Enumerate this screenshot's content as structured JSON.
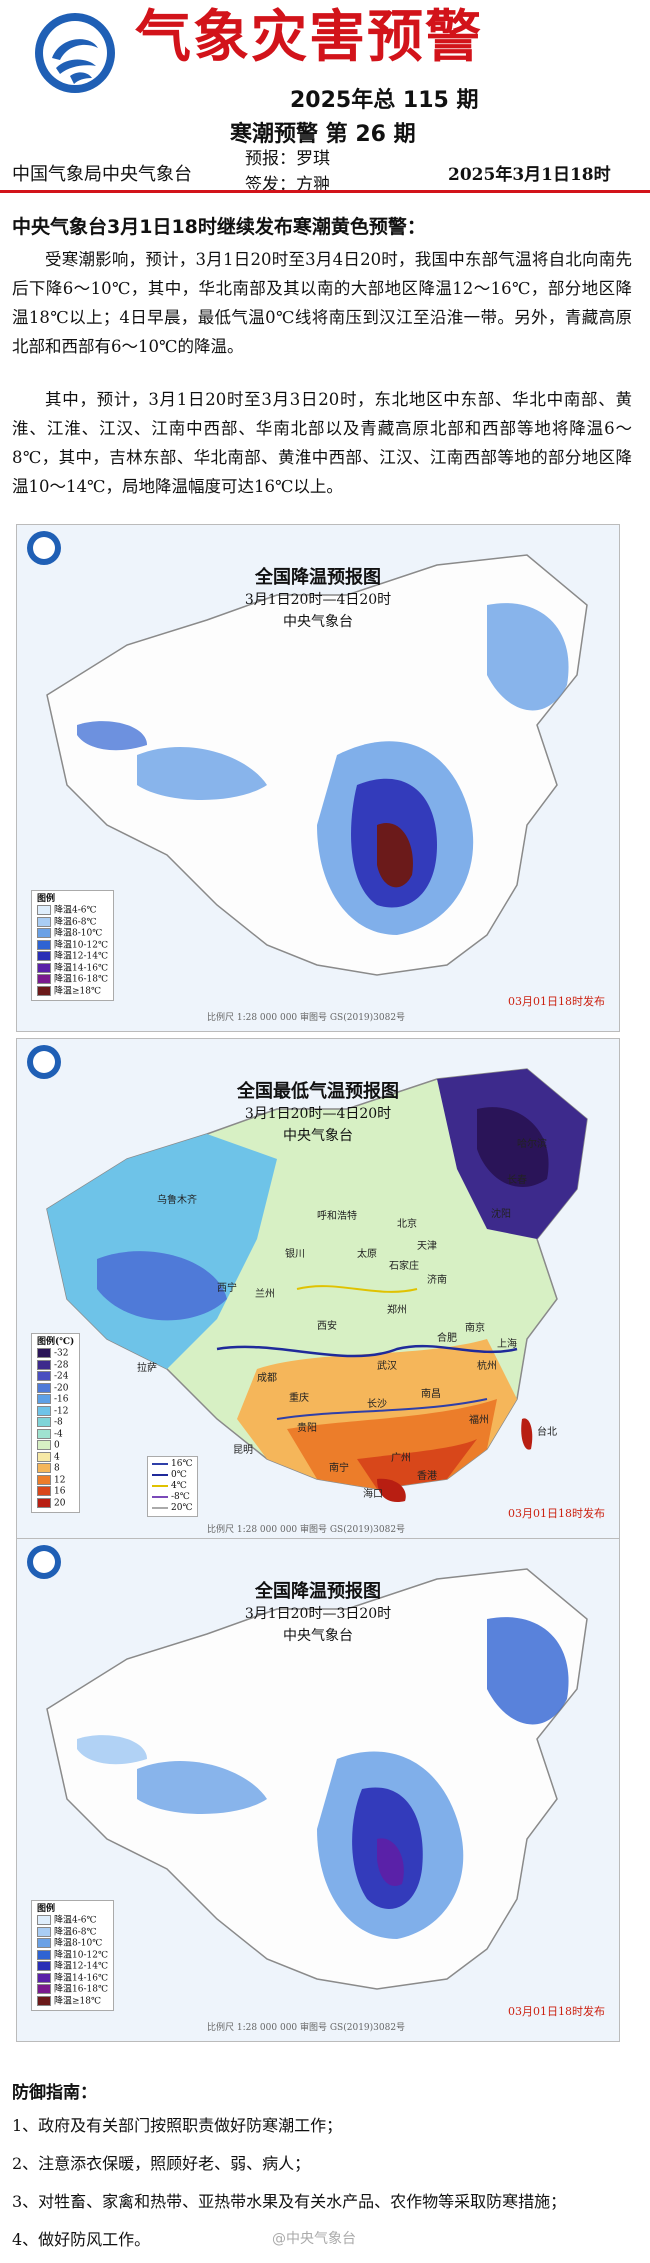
{
  "header": {
    "title": "气象灾害预警",
    "issue": "2025年总 115 期",
    "warning_no": "寒潮预警 第 26 期",
    "issuer": "中国气象局中央气象台",
    "forecaster_label": "预报：",
    "forecaster": "罗琪",
    "signer_label": "签发：",
    "signer": "方翀",
    "issue_time": "2025年3月1日18时"
  },
  "headline": "中央气象台3月1日18时继续发布寒潮黄色预警：",
  "paragraphs": [
    "受寒潮影响，预计，3月1日20时至3月4日20时，我国中东部气温将自北向南先后下降6～10℃，其中，华北南部及其以南的大部地区降温12～16℃，部分地区降温18℃以上；4日早晨，最低气温0℃线将南压到汉江至沿淮一带。另外，青藏高原北部和西部有6～10℃的降温。",
    "其中，预计，3月1日20时至3月3日20时，东北地区中东部、华北中南部、黄淮、江淮、江汉、江南中西部、华南北部以及青藏高原北部和西部等地将降温6～8℃，其中，吉林东部、华北南部、黄淮中西部、江汉、江南西部等地的部分地区降温10～14℃，局地降温幅度可达16℃以上。"
  ],
  "maps": [
    {
      "title": "全国降温预报图",
      "subtitle": "3月1日20时—4日20时",
      "org": "中央气象台",
      "stamp": "03月01日18时发布",
      "scale": "比例尺 1:28 000 000   审图号 GS(2019)3082号",
      "legend_title": "图例",
      "legend": [
        {
          "label": "降温4-6℃",
          "color": "#dfeefc"
        },
        {
          "label": "降温6-8℃",
          "color": "#a9cdf4"
        },
        {
          "label": "降温8-10℃",
          "color": "#6aa1e6"
        },
        {
          "label": "降温10-12℃",
          "color": "#2f63d2"
        },
        {
          "label": "降温12-14℃",
          "color": "#2a2fb6"
        },
        {
          "label": "降温14-16℃",
          "color": "#5a21a8"
        },
        {
          "label": "降温16-18℃",
          "color": "#7a1a8e"
        },
        {
          "label": "降温≥18℃",
          "color": "#6b1a1a"
        }
      ]
    },
    {
      "title": "全国最低气温预报图",
      "subtitle": "3月1日20时—4日20时",
      "org": "中央气象台",
      "stamp": "03月01日18时发布",
      "scale": "比例尺 1:28 000 000   审图号 GS(2019)3082号",
      "legend_title": "图例(℃)",
      "legend": [
        {
          "label": "-32",
          "color": "#2a1458"
        },
        {
          "label": "-28",
          "color": "#3d2a8c"
        },
        {
          "label": "-24",
          "color": "#4a4fc0"
        },
        {
          "label": "-20",
          "color": "#4f7ad8"
        },
        {
          "label": "-16",
          "color": "#5da0e6"
        },
        {
          "label": "-12",
          "color": "#6ec3e8"
        },
        {
          "label": "-8",
          "color": "#7fd4d8"
        },
        {
          "label": "-4",
          "color": "#9fe3d0"
        },
        {
          "label": "0",
          "color": "#d7f0c4"
        },
        {
          "label": "4",
          "color": "#f7e9a6"
        },
        {
          "label": "8",
          "color": "#f5b65a"
        },
        {
          "label": "12",
          "color": "#ec7d2a"
        },
        {
          "label": "16",
          "color": "#d8471a"
        },
        {
          "label": "20",
          "color": "#b81e12"
        }
      ],
      "contours": [
        {
          "label": "16℃",
          "color": "#2f3fa8"
        },
        {
          "label": "0℃",
          "color": "#1f2a9a"
        },
        {
          "label": "4℃",
          "color": "#e0c200"
        },
        {
          "label": "-8℃",
          "color": "#7a4ab8"
        },
        {
          "label": "20℃",
          "color": "#aaaaaa"
        }
      ],
      "cities": [
        "乌鲁木齐",
        "呼和浩特",
        "北京",
        "天津",
        "太原",
        "石家庄",
        "济南",
        "郑州",
        "西安",
        "兰州",
        "西宁",
        "拉萨",
        "成都",
        "重庆",
        "武汉",
        "合肥",
        "南京",
        "上海",
        "杭州",
        "长沙",
        "南昌",
        "福州",
        "贵阳",
        "昆明",
        "南宁",
        "广州",
        "香港",
        "海口",
        "台北",
        "沈阳",
        "长春",
        "哈尔滨",
        "银川"
      ]
    },
    {
      "title": "全国降温预报图",
      "subtitle": "3月1日20时—3日20时",
      "org": "中央气象台",
      "stamp": "03月01日18时发布",
      "scale": "比例尺 1:28 000 000   审图号 GS(2019)3082号",
      "legend_title": "图例",
      "legend": [
        {
          "label": "降温4-6℃",
          "color": "#dfeefc"
        },
        {
          "label": "降温6-8℃",
          "color": "#a9cdf4"
        },
        {
          "label": "降温8-10℃",
          "color": "#6aa1e6"
        },
        {
          "label": "降温10-12℃",
          "color": "#2f63d2"
        },
        {
          "label": "降温12-14℃",
          "color": "#2a2fb6"
        },
        {
          "label": "降温14-16℃",
          "color": "#5a21a8"
        },
        {
          "label": "降温16-18℃",
          "color": "#7a1a8e"
        },
        {
          "label": "降温≥18℃",
          "color": "#6b1a1a"
        }
      ]
    }
  ],
  "guide": {
    "title": "防御指南：",
    "items": [
      "1、政府及有关部门按照职责做好防寒潮工作；",
      "2、注意添衣保暖，照顾好老、弱、病人；",
      "3、对牲畜、家禽和热带、亚热带水果及有关水产品、农作物等采取防寒措施；",
      "4、做好防风工作。"
    ]
  },
  "watermark": "@中央气象台",
  "colors": {
    "brand_red": "#d2131a",
    "logo_blue": "#1f5fb5"
  }
}
